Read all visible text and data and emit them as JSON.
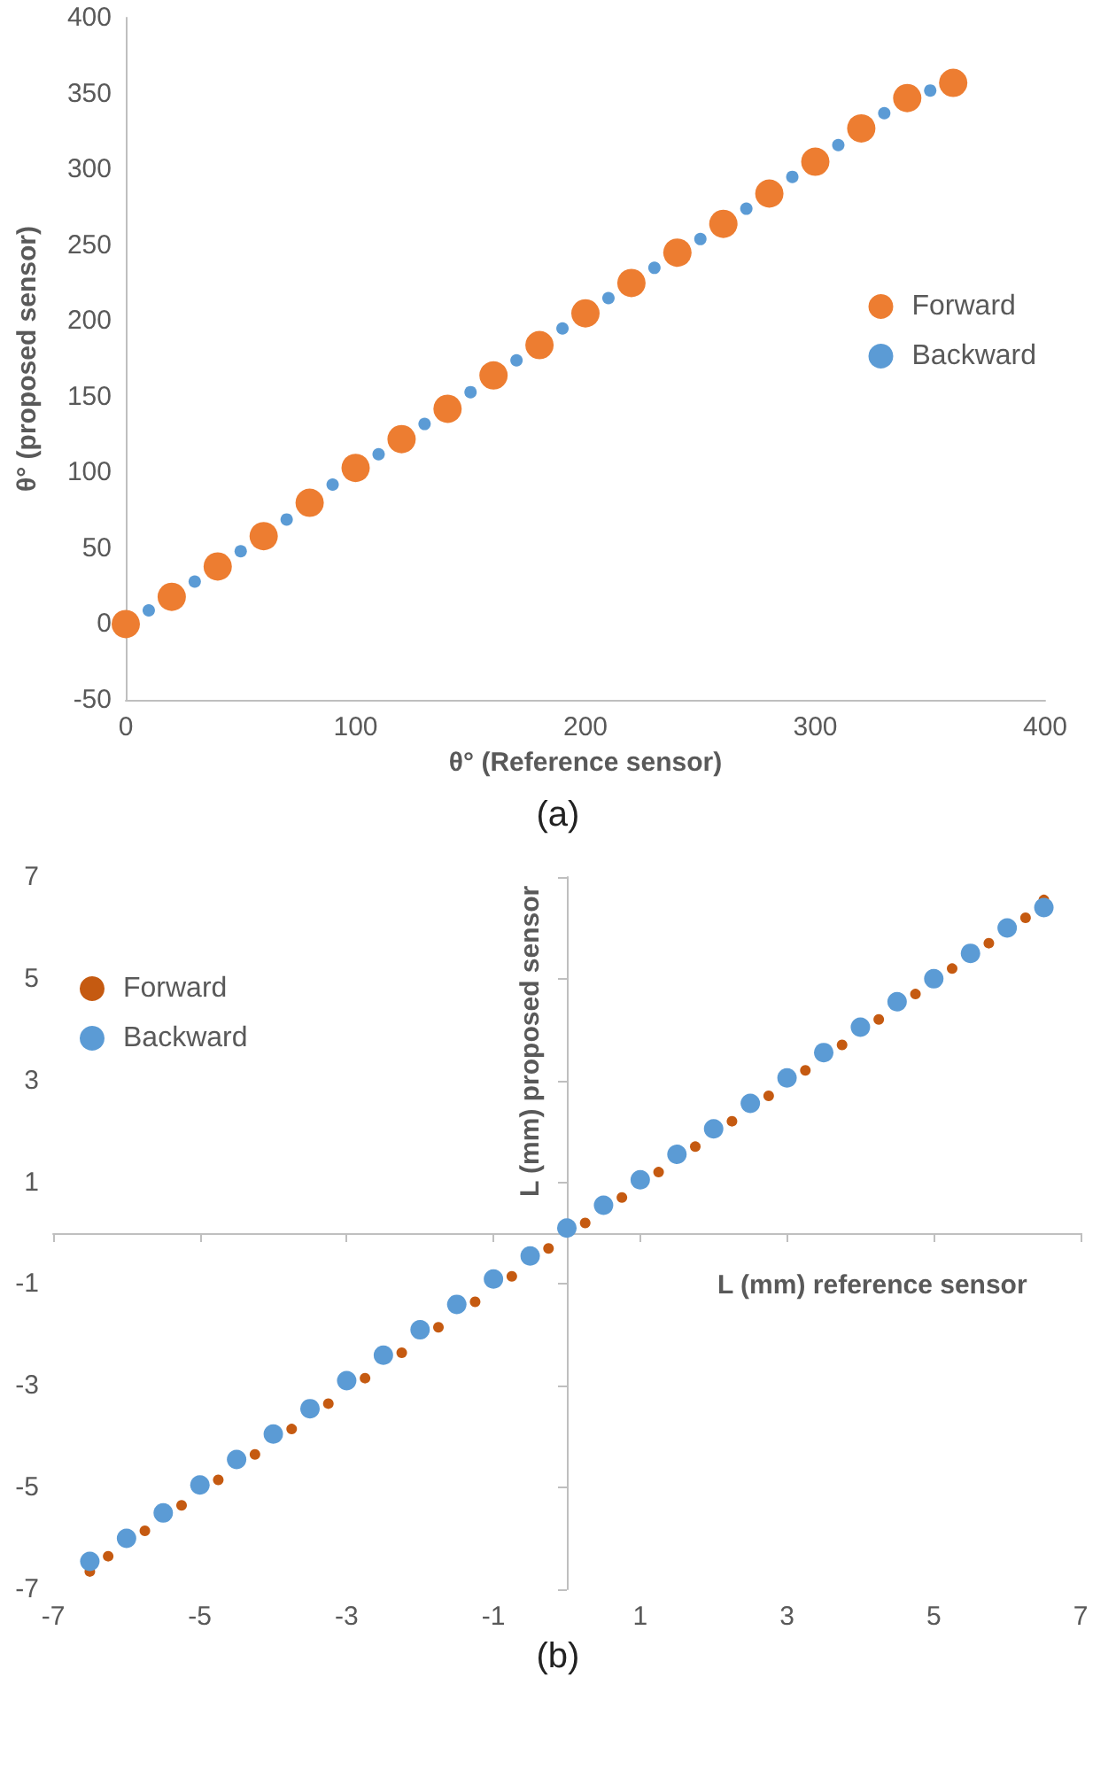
{
  "chart_data": [
    {
      "type": "scatter",
      "xlabel": "θ° (Reference sensor)",
      "ylabel": "θ° (proposed sensor)",
      "annotations": [
        "(a)"
      ],
      "xlim": [
        0,
        400
      ],
      "xticks": [
        0,
        100,
        200,
        300,
        400
      ],
      "ylim": [
        -50,
        400
      ],
      "yticks": [
        -50,
        0,
        50,
        100,
        150,
        200,
        250,
        300,
        350,
        400
      ],
      "grid": false,
      "legend": "right",
      "marker": "circle",
      "series": [
        {
          "name": "Forward",
          "color": "#ed7d31",
          "x": [
            0,
            20,
            40,
            60,
            80,
            100,
            120,
            140,
            160,
            180,
            200,
            220,
            240,
            260,
            280,
            300,
            320,
            340,
            360
          ],
          "values": [
            0,
            18,
            38,
            58,
            80,
            103,
            122,
            142,
            164,
            184,
            205,
            225,
            245,
            264,
            284,
            305,
            327,
            347,
            357
          ]
        },
        {
          "name": "Backward",
          "color": "#5b9bd5",
          "x": [
            10,
            30,
            50,
            70,
            90,
            110,
            130,
            150,
            170,
            190,
            210,
            230,
            250,
            270,
            290,
            310,
            330,
            350
          ],
          "values": [
            9,
            28,
            48,
            69,
            92,
            112,
            132,
            153,
            174,
            195,
            215,
            235,
            254,
            274,
            295,
            316,
            337,
            352
          ]
        }
      ]
    },
    {
      "type": "scatter",
      "xlabel": "L (mm) reference sensor",
      "ylabel": "L (mm) proposed sensor",
      "annotations": [
        "(b)"
      ],
      "xlim": [
        -7,
        7
      ],
      "xticks": [
        -7,
        -5,
        -3,
        -1,
        1,
        3,
        5,
        7
      ],
      "ylim": [
        -7,
        7
      ],
      "yticks": [
        -7,
        -5,
        -3,
        -1,
        1,
        3,
        5,
        7
      ],
      "grid": false,
      "legend": "top left",
      "marker": "circle",
      "series": [
        {
          "name": "Forward",
          "color": "#c55a11",
          "x": [
            -6.5,
            -6.25,
            -5.75,
            -5.25,
            -4.75,
            -4.25,
            -3.75,
            -3.25,
            -2.75,
            -2.25,
            -1.75,
            -1.25,
            -0.75,
            -0.25,
            0.25,
            0.75,
            1.25,
            1.75,
            2.25,
            2.75,
            3.25,
            3.75,
            4.25,
            4.75,
            5.25,
            5.75,
            6.25,
            6.5
          ],
          "values": [
            -6.65,
            -6.35,
            -5.85,
            -5.35,
            -4.85,
            -4.35,
            -3.85,
            -3.35,
            -2.85,
            -2.35,
            -1.85,
            -1.35,
            -0.85,
            -0.3,
            0.2,
            0.7,
            1.2,
            1.7,
            2.2,
            2.7,
            3.2,
            3.7,
            4.2,
            4.7,
            5.2,
            5.7,
            6.2,
            6.55
          ]
        },
        {
          "name": "Backward",
          "color": "#5b9bd5",
          "x": [
            -6.5,
            -6,
            -5.5,
            -5,
            -4.5,
            -4,
            -3.5,
            -3,
            -2.5,
            -2,
            -1.5,
            -1,
            -0.5,
            0,
            0.5,
            1,
            1.5,
            2,
            2.5,
            3,
            3.5,
            4,
            4.5,
            5,
            5.5,
            6,
            6.5
          ],
          "values": [
            -6.45,
            -6.0,
            -5.5,
            -4.95,
            -4.45,
            -3.95,
            -3.45,
            -2.9,
            -2.4,
            -1.9,
            -1.4,
            -0.9,
            -0.45,
            0.1,
            0.55,
            1.05,
            1.55,
            2.05,
            2.55,
            3.05,
            3.55,
            4.05,
            4.55,
            5.0,
            5.5,
            6.0,
            6.4
          ]
        }
      ]
    }
  ]
}
